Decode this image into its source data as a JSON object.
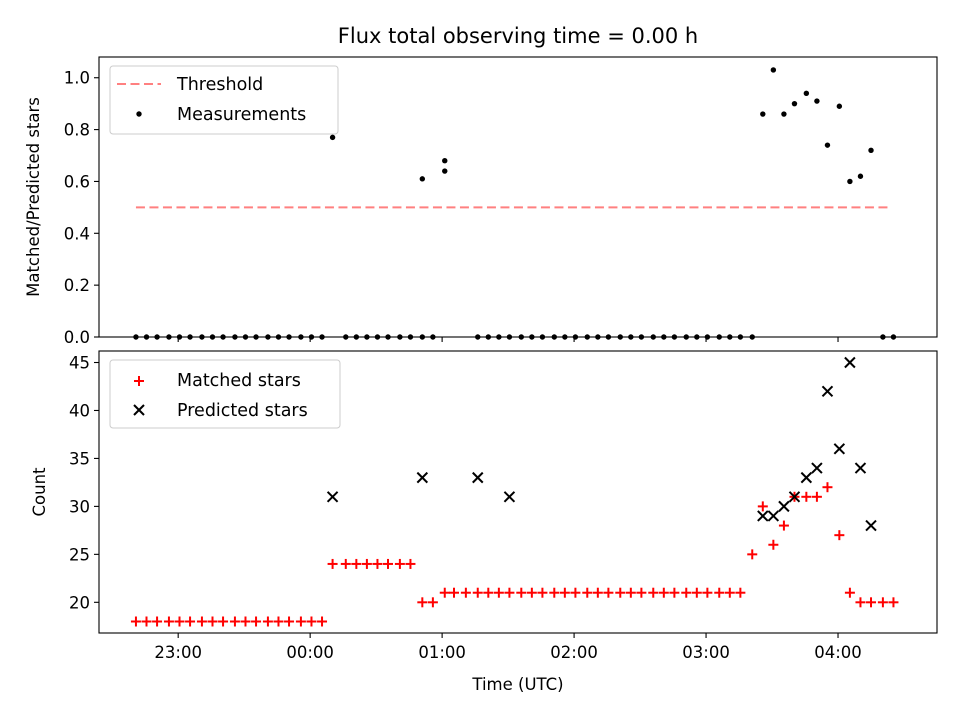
{
  "chart_data": {
    "type": "scatter",
    "title": "Flux total observing time = 0.00 h",
    "xlabel": "Time (UTC)",
    "x_tick_labels": [
      "23:00",
      "00:00",
      "01:00",
      "02:00",
      "03:00",
      "04:00"
    ],
    "x_unit": "hours after 22:00 UTC",
    "x_range": [
      0.4,
      6.75
    ],
    "top": {
      "ylabel": "Matched/Predicted stars",
      "ylim": [
        0,
        1.08
      ],
      "y_ticks": [
        0.0,
        0.2,
        0.4,
        0.6,
        0.8,
        1.0
      ],
      "y_tick_labels": [
        "0.0",
        "0.2",
        "0.4",
        "0.6",
        "0.8",
        "1.0"
      ],
      "legend_position": "top-left",
      "threshold": {
        "name": "Threshold",
        "y": 0.5,
        "x": [
          0.68,
          6.4
        ],
        "color": "#ff8080"
      },
      "measurements": {
        "name": "Measurements",
        "color": "#000000",
        "x": [
          0.68,
          0.76,
          0.84,
          0.93,
          1.01,
          1.09,
          1.18,
          1.26,
          1.34,
          1.43,
          1.51,
          1.59,
          1.68,
          1.76,
          1.84,
          1.93,
          2.01,
          2.09,
          2.17,
          2.27,
          2.35,
          2.43,
          2.51,
          2.59,
          2.68,
          2.76,
          2.85,
          2.93,
          3.02,
          3.27,
          3.35,
          3.43,
          3.51,
          3.6,
          3.68,
          3.76,
          3.85,
          3.93,
          4.01,
          4.1,
          4.18,
          4.26,
          4.35,
          4.43,
          4.51,
          4.6,
          4.68,
          4.76,
          4.85,
          4.93,
          5.01,
          5.1,
          5.18,
          5.26,
          5.35,
          5.43,
          5.51,
          5.59,
          5.67,
          5.76,
          5.84,
          5.92,
          6.01,
          6.09,
          6.17,
          6.25,
          6.34,
          6.42
        ],
        "y": [
          0,
          0,
          0,
          0,
          0,
          0,
          0,
          0,
          0,
          0,
          0,
          0,
          0,
          0,
          0,
          0,
          0,
          0,
          0.77,
          0,
          0,
          0,
          0,
          0,
          0,
          0,
          0.61,
          0,
          0.64,
          0,
          0,
          0,
          0,
          0,
          0,
          0,
          0,
          0,
          0,
          0,
          0,
          0,
          0,
          0,
          0,
          0,
          0,
          0,
          0,
          0,
          0,
          0,
          0,
          0,
          0,
          0.86,
          1.03,
          0.86,
          0.9,
          0.94,
          0.91,
          0.74,
          0.89,
          0.6,
          0.62,
          0.72,
          0,
          0
        ]
      },
      "measurements_extra": {
        "x": [
          2.85,
          3.02
        ],
        "y": [
          0,
          0.68
        ]
      }
    },
    "bottom": {
      "ylabel": "Count",
      "ylim": [
        16.8,
        46.2
      ],
      "y_ticks": [
        20,
        25,
        30,
        35,
        40,
        45
      ],
      "y_tick_labels": [
        "20",
        "25",
        "30",
        "35",
        "40",
        "45"
      ],
      "legend_position": "top-left",
      "series": [
        {
          "name": "Matched stars",
          "marker": "plus",
          "color": "#ff0000",
          "x": [
            0.68,
            0.76,
            0.84,
            0.93,
            1.01,
            1.09,
            1.18,
            1.26,
            1.34,
            1.43,
            1.51,
            1.59,
            1.68,
            1.76,
            1.84,
            1.93,
            2.01,
            2.09,
            2.17,
            2.27,
            2.35,
            2.43,
            2.51,
            2.59,
            2.68,
            2.76,
            2.85,
            2.93,
            3.02,
            3.09,
            3.18,
            3.27,
            3.35,
            3.43,
            3.51,
            3.6,
            3.68,
            3.76,
            3.85,
            3.93,
            4.01,
            4.1,
            4.18,
            4.26,
            4.35,
            4.43,
            4.51,
            4.6,
            4.68,
            4.76,
            4.85,
            4.93,
            5.01,
            5.1,
            5.18,
            5.26,
            5.35,
            5.43,
            5.51,
            5.59,
            5.67,
            5.76,
            5.84,
            5.92,
            6.01,
            6.09,
            6.17,
            6.25,
            6.34,
            6.42
          ],
          "y": [
            18,
            18,
            18,
            18,
            18,
            18,
            18,
            18,
            18,
            18,
            18,
            18,
            18,
            18,
            18,
            18,
            18,
            18,
            24,
            24,
            24,
            24,
            24,
            24,
            24,
            24,
            20,
            20,
            21,
            21,
            21,
            21,
            21,
            21,
            21,
            21,
            21,
            21,
            21,
            21,
            21,
            21,
            21,
            21,
            21,
            21,
            21,
            21,
            21,
            21,
            21,
            21,
            21,
            21,
            21,
            21,
            25,
            30,
            26,
            28,
            31,
            31,
            31,
            32,
            27,
            21,
            20,
            20,
            20,
            20
          ]
        },
        {
          "name": "Predicted stars",
          "marker": "x",
          "color": "#000000",
          "x": [
            2.17,
            2.85,
            3.27,
            3.51,
            5.43,
            5.51,
            5.59,
            5.67,
            5.76,
            5.84,
            5.92,
            6.01,
            6.09,
            6.17,
            6.25
          ],
          "y": [
            31,
            33,
            33,
            31,
            29,
            29,
            30,
            31,
            33,
            34,
            42,
            36,
            45,
            34,
            28
          ]
        }
      ]
    }
  }
}
